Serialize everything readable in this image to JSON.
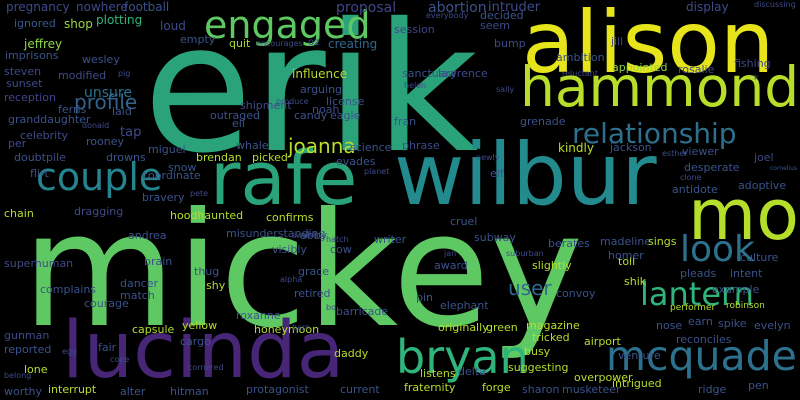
{
  "cloud": {
    "background": "#000000",
    "words": [
      {
        "text": "mickey",
        "color": "#5ec962"
      },
      {
        "text": "erik",
        "color": "#2aa37b"
      },
      {
        "text": "alison",
        "color": "#e6e41a"
      },
      {
        "text": "hammond",
        "color": "#b8de29"
      },
      {
        "text": "wilbur",
        "color": "#238a8d"
      },
      {
        "text": "mo",
        "color": "#b5de2b"
      },
      {
        "text": "lucinda",
        "color": "#482677"
      },
      {
        "text": "rafe",
        "color": "#2aa37b"
      },
      {
        "text": "bryan",
        "color": "#2fb47c"
      },
      {
        "text": "mcquade",
        "color": "#2c728e"
      },
      {
        "text": "engaged",
        "color": "#5ec962"
      },
      {
        "text": "couple",
        "color": "#25858e"
      },
      {
        "text": "look",
        "color": "#2c728e"
      },
      {
        "text": "lantern",
        "color": "#2fb47c"
      },
      {
        "text": "relationship",
        "color": "#2d708e"
      },
      {
        "text": "profile",
        "color": "#33638d"
      },
      {
        "text": "joanna",
        "color": "#b8de29"
      },
      {
        "text": "user",
        "color": "#31688e"
      },
      {
        "text": "pregnancy",
        "color": "#3e4a89"
      },
      {
        "text": "nowhere",
        "color": "#3e4a89"
      },
      {
        "text": "football",
        "color": "#3b528b"
      },
      {
        "text": "loud",
        "color": "#3e4a89"
      },
      {
        "text": "proposal",
        "color": "#414487"
      },
      {
        "text": "abortion",
        "color": "#3b528b"
      },
      {
        "text": "intruder",
        "color": "#3e4a89"
      },
      {
        "text": "display",
        "color": "#3e4a89"
      },
      {
        "text": "discussing",
        "color": "#3e4a89"
      },
      {
        "text": "ignored",
        "color": "#38588c"
      },
      {
        "text": "shop",
        "color": "#98d83e"
      },
      {
        "text": "plotting",
        "color": "#32b67a"
      },
      {
        "text": "empty",
        "color": "#3b528b"
      },
      {
        "text": "session",
        "color": "#414487"
      },
      {
        "text": "decided",
        "color": "#3b528b"
      },
      {
        "text": "seem",
        "color": "#3e4a89"
      },
      {
        "text": "jeffrey",
        "color": "#8fd744"
      },
      {
        "text": "quit",
        "color": "#a8db34"
      },
      {
        "text": "creating",
        "color": "#31688e"
      },
      {
        "text": "bump",
        "color": "#3e4a89"
      },
      {
        "text": "jill",
        "color": "#3e4a89"
      },
      {
        "text": "imprisons",
        "color": "#3b528b"
      },
      {
        "text": "wesley",
        "color": "#3b528b"
      },
      {
        "text": "ambition",
        "color": "#3b528b"
      },
      {
        "text": "fishing",
        "color": "#3e4a89"
      },
      {
        "text": "steven",
        "color": "#3e4a89"
      },
      {
        "text": "sunset",
        "color": "#3e4a89"
      },
      {
        "text": "modified",
        "color": "#3e4a89"
      },
      {
        "text": "influence",
        "color": "#b5de2b"
      },
      {
        "text": "lawrence",
        "color": "#3e4a89"
      },
      {
        "text": "appointed",
        "color": "#8fd744"
      },
      {
        "text": "rosalie",
        "color": "#3e4a89"
      },
      {
        "text": "reception",
        "color": "#414487"
      },
      {
        "text": "unsure",
        "color": "#2c728e"
      },
      {
        "text": "arguing",
        "color": "#3b528b"
      },
      {
        "text": "license",
        "color": "#3b528b"
      },
      {
        "text": "eagle",
        "color": "#3b528b"
      },
      {
        "text": "ferris",
        "color": "#3b528b"
      },
      {
        "text": "granddaughter",
        "color": "#3b528b"
      },
      {
        "text": "laid",
        "color": "#3b528b"
      },
      {
        "text": "outraged",
        "color": "#3b528b"
      },
      {
        "text": "candy",
        "color": "#3b528b"
      },
      {
        "text": "fran",
        "color": "#3b528b"
      },
      {
        "text": "grenade",
        "color": "#3b528b"
      },
      {
        "text": "celebrity",
        "color": "#3e4a89"
      },
      {
        "text": "tap",
        "color": "#3e4a89"
      },
      {
        "text": "eli",
        "color": "#3b528b"
      },
      {
        "text": "per",
        "color": "#3e4a89"
      },
      {
        "text": "rooney",
        "color": "#3b528b"
      },
      {
        "text": "miguel",
        "color": "#3b528b"
      },
      {
        "text": "whale",
        "color": "#3b528b"
      },
      {
        "text": "science",
        "color": "#3b528b"
      },
      {
        "text": "kindly",
        "color": "#b5de2b"
      },
      {
        "text": "jackson",
        "color": "#3b528b"
      },
      {
        "text": "viewer",
        "color": "#3b528b"
      },
      {
        "text": "joel",
        "color": "#3e4a89"
      },
      {
        "text": "doubt",
        "color": "#3b528b"
      },
      {
        "text": "pile",
        "color": "#3e4a89"
      },
      {
        "text": "drowns",
        "color": "#3b528b"
      },
      {
        "text": "brendan",
        "color": "#b5de2b"
      },
      {
        "text": "picked",
        "color": "#b5de2b"
      },
      {
        "text": "evades",
        "color": "#3b528b"
      },
      {
        "text": "elf",
        "color": "#3b528b"
      },
      {
        "text": "desperate",
        "color": "#3b528b"
      },
      {
        "text": "adoptive",
        "color": "#3b528b"
      },
      {
        "text": "cornelius",
        "color": "#3b528b"
      },
      {
        "text": "flirt",
        "color": "#3b528b"
      },
      {
        "text": "snow",
        "color": "#3b528b"
      },
      {
        "text": "coordinate",
        "color": "#3b528b"
      },
      {
        "text": "antidote",
        "color": "#3b528b"
      },
      {
        "text": "chain",
        "color": "#b5de2b"
      },
      {
        "text": "dragging",
        "color": "#3e4a89"
      },
      {
        "text": "bravery",
        "color": "#3b528b"
      },
      {
        "text": "hoodhaunted",
        "color": "#b5de2b"
      },
      {
        "text": "confirms",
        "color": "#b5de2b"
      },
      {
        "text": "cruel",
        "color": "#3b528b"
      },
      {
        "text": "subway",
        "color": "#3b528b"
      },
      {
        "text": "berates",
        "color": "#3b528b"
      },
      {
        "text": "madeline",
        "color": "#3b528b"
      },
      {
        "text": "sings",
        "color": "#b5de2b"
      },
      {
        "text": "toll",
        "color": "#b5de2b"
      },
      {
        "text": "homer",
        "color": "#3b528b"
      },
      {
        "text": "shik",
        "color": "#b5de2b"
      },
      {
        "text": "andrea",
        "color": "#3b528b"
      },
      {
        "text": "brain",
        "color": "#3b528b"
      },
      {
        "text": "thug",
        "color": "#3b528b"
      },
      {
        "text": "visibly",
        "color": "#3b528b"
      },
      {
        "text": "abby",
        "color": "#3b528b"
      },
      {
        "text": "cow",
        "color": "#3b528b"
      },
      {
        "text": "award",
        "color": "#3b528b"
      },
      {
        "text": "intent",
        "color": "#3b528b"
      },
      {
        "text": "culture",
        "color": "#3b528b"
      },
      {
        "text": "example",
        "color": "#3b528b"
      },
      {
        "text": "superhuman",
        "color": "#3e4a89"
      },
      {
        "text": "dancer",
        "color": "#3b528b"
      },
      {
        "text": "shy",
        "color": "#b5de2b"
      },
      {
        "text": "grace",
        "color": "#3b528b"
      },
      {
        "text": "retired",
        "color": "#3b528b"
      },
      {
        "text": "pleads",
        "color": "#3b528b"
      },
      {
        "text": "complains",
        "color": "#3b528b"
      },
      {
        "text": "match",
        "color": "#3b528b"
      },
      {
        "text": "convoy",
        "color": "#3b528b"
      },
      {
        "text": "earn",
        "color": "#3b528b"
      },
      {
        "text": "spike",
        "color": "#3b528b"
      },
      {
        "text": "evelyn",
        "color": "#3b528b"
      },
      {
        "text": "capsule",
        "color": "#b5de2b"
      },
      {
        "text": "yellow",
        "color": "#b5de2b"
      },
      {
        "text": "daddy",
        "color": "#b5de2b"
      },
      {
        "text": "originally",
        "color": "#b5de2b"
      },
      {
        "text": "green",
        "color": "#b5de2b"
      },
      {
        "text": "magazine",
        "color": "#b5de2b"
      },
      {
        "text": "nose",
        "color": "#3b528b"
      },
      {
        "text": "reconciles",
        "color": "#3b528b"
      },
      {
        "text": "gunman",
        "color": "#3e4a89"
      },
      {
        "text": "cargo",
        "color": "#3b528b"
      },
      {
        "text": "honeymoon",
        "color": "#b5de2b"
      },
      {
        "text": "tricked",
        "color": "#b5de2b"
      },
      {
        "text": "airport",
        "color": "#b5de2b"
      },
      {
        "text": "reported",
        "color": "#3b528b"
      },
      {
        "text": "lone",
        "color": "#b5de2b"
      },
      {
        "text": "busy",
        "color": "#b5de2b"
      },
      {
        "text": "intrigued",
        "color": "#b5de2b"
      },
      {
        "text": "ridge",
        "color": "#3b528b"
      },
      {
        "text": "pen",
        "color": "#3b528b"
      },
      {
        "text": "interrupt",
        "color": "#b5de2b"
      },
      {
        "text": "alter",
        "color": "#3b528b"
      },
      {
        "text": "hitman",
        "color": "#3b528b"
      },
      {
        "text": "protagonist",
        "color": "#3b528b"
      },
      {
        "text": "current",
        "color": "#3b528b"
      },
      {
        "text": "fraternity",
        "color": "#b5de2b"
      },
      {
        "text": "forge",
        "color": "#b5de2b"
      },
      {
        "text": "sharon",
        "color": "#3b528b"
      },
      {
        "text": "musketeer",
        "color": "#3b528b"
      },
      {
        "text": "overpower",
        "color": "#b5de2b"
      },
      {
        "text": "listens",
        "color": "#b5de2b"
      },
      {
        "text": "suggesting",
        "color": "#b5de2b"
      },
      {
        "text": "delta",
        "color": "#3b528b"
      },
      {
        "text": "worthy",
        "color": "#3b528b"
      },
      {
        "text": "venture",
        "color": "#3b528b"
      },
      {
        "text": "performer",
        "color": "#b5de2b"
      },
      {
        "text": "robinson",
        "color": "#b5de2b"
      },
      {
        "text": "shipment",
        "color": "#3e4a89"
      },
      {
        "text": "noah",
        "color": "#3e4a89"
      },
      {
        "text": "sanctuary",
        "color": "#3b528b"
      },
      {
        "text": "slightly",
        "color": "#b5de2b"
      },
      {
        "text": "misunderstanding",
        "color": "#3b528b"
      },
      {
        "text": "barricade",
        "color": "#3b528b"
      },
      {
        "text": "roxanne",
        "color": "#3b528b"
      },
      {
        "text": "courage",
        "color": "#3b528b"
      },
      {
        "text": "fair",
        "color": "#3b528b"
      },
      {
        "text": "writer",
        "color": "#3b528b"
      },
      {
        "text": "elephant",
        "color": "#3b528b"
      },
      {
        "text": "pin",
        "color": "#3b528b"
      },
      {
        "text": "phrase",
        "color": "#3e4a89"
      },
      {
        "text": "everybody",
        "color": "#3e4a89"
      },
      {
        "text": "encourages",
        "color": "#3e4a89"
      },
      {
        "text": "oz",
        "color": "#3e4a89"
      },
      {
        "text": "pig",
        "color": "#3e4a89"
      },
      {
        "text": "helen",
        "color": "#3e4a89"
      },
      {
        "text": "reluctant",
        "color": "#3e4a89"
      },
      {
        "text": "produce",
        "color": "#3e4a89"
      },
      {
        "text": "sally",
        "color": "#3e4a89"
      },
      {
        "text": "donald",
        "color": "#3e4a89"
      },
      {
        "text": "newly",
        "color": "#3e4a89"
      },
      {
        "text": "esther",
        "color": "#3e4a89"
      },
      {
        "text": "clone",
        "color": "#3e4a89"
      },
      {
        "text": "planet",
        "color": "#3e4a89"
      },
      {
        "text": "pete",
        "color": "#3e4a89"
      },
      {
        "text": "swarm",
        "color": "#3e4a89"
      },
      {
        "text": "hatch",
        "color": "#3e4a89"
      },
      {
        "text": "jan",
        "color": "#3e4a89"
      },
      {
        "text": "suburban",
        "color": "#3e4a89"
      },
      {
        "text": "alpha",
        "color": "#3e4a89"
      },
      {
        "text": "bo",
        "color": "#3e4a89"
      },
      {
        "text": "barn",
        "color": "#3e4a89"
      },
      {
        "text": "egg",
        "color": "#3e4a89"
      },
      {
        "text": "belong",
        "color": "#3e4a89"
      },
      {
        "text": "cope",
        "color": "#3e4a89"
      },
      {
        "text": "cornered",
        "color": "#3e4a89"
      },
      {
        "text": "k",
        "color": "#3e4a89"
      }
    ]
  }
}
